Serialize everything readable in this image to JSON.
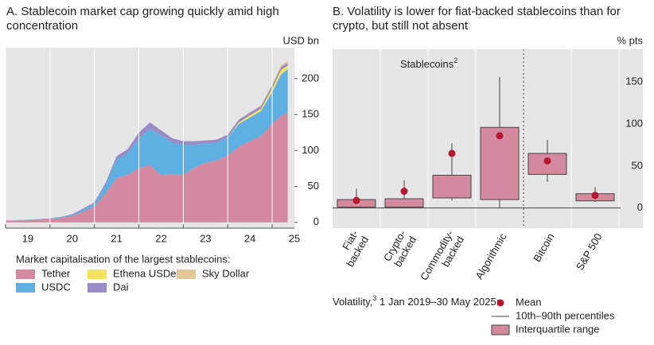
{
  "chart_data": [
    {
      "type": "area",
      "title": "A. Stablecoin market cap growing quickly amid high concentration",
      "y_unit": "USD bn",
      "x": [
        2019,
        2019.5,
        2020,
        2020.25,
        2020.5,
        2020.75,
        2021,
        2021.25,
        2021.5,
        2021.75,
        2022,
        2022.25,
        2022.5,
        2022.75,
        2023,
        2023.25,
        2023.5,
        2023.75,
        2024,
        2024.25,
        2024.5,
        2024.75,
        2025,
        2025.2,
        2025.35
      ],
      "series": [
        {
          "name": "Tether",
          "color": "#d4899e",
          "values": [
            2,
            3,
            4.5,
            6,
            9,
            15,
            22,
            40,
            62,
            66,
            75,
            80,
            66,
            67,
            66,
            76,
            83,
            86,
            93,
            105,
            113,
            120,
            137,
            148,
            152
          ]
        },
        {
          "name": "USDC",
          "color": "#5eb0e2",
          "values": [
            0.5,
            0.5,
            0.6,
            1,
            1.5,
            3,
            4,
            12,
            25,
            30,
            42,
            50,
            55,
            44,
            42,
            32,
            27,
            25,
            25,
            32,
            33,
            35,
            44,
            58,
            61
          ]
        },
        {
          "name": "Ethena USDe",
          "color": "#f6e35c",
          "values": [
            0,
            0,
            0,
            0,
            0,
            0,
            0,
            0,
            0,
            0,
            0,
            0,
            0,
            0,
            0,
            0,
            0,
            0,
            0,
            2,
            3,
            3,
            5,
            6,
            5
          ]
        },
        {
          "name": "Dai",
          "color": "#9a8cc6",
          "values": [
            0.2,
            0.3,
            0.5,
            0.7,
            1,
            1.5,
            2,
            3,
            5,
            6,
            8,
            9,
            7,
            6,
            5,
            5,
            4,
            4,
            4,
            4,
            4,
            4,
            4,
            4,
            4
          ]
        },
        {
          "name": "Sky Dollar",
          "color": "#e2c895",
          "values": [
            0,
            0,
            0,
            0,
            0,
            0,
            0,
            0,
            0,
            0,
            0,
            0,
            0,
            0,
            0,
            0,
            0,
            0,
            0,
            0,
            0,
            1,
            2,
            3,
            3
          ]
        }
      ],
      "xlim": [
        2019,
        2025.5
      ],
      "xticks": [
        {
          "value": 2019,
          "label": "19"
        },
        {
          "value": 2020,
          "label": "20"
        },
        {
          "value": 2021,
          "label": "21"
        },
        {
          "value": 2022,
          "label": "22"
        },
        {
          "value": 2023,
          "label": "23"
        },
        {
          "value": 2024,
          "label": "24"
        },
        {
          "value": 2025,
          "label": "25"
        }
      ],
      "ylim": [
        -8,
        243
      ],
      "yticks": [
        0,
        50,
        100,
        150,
        200
      ],
      "legend_title": "Market capitalisation of the largest stablecoins:"
    },
    {
      "type": "box",
      "title": "B. Volatility is lower for fiat-backed stablecoins than for crypto, but still not absent",
      "y_unit": "% pts",
      "annotation": {
        "text": "Stablecoins",
        "sup": "2"
      },
      "categories": [
        "Fiat-backed",
        "Crypto-backed",
        "Commodity-backed",
        "Algorithmic",
        "Bitcoin",
        "S&P 500"
      ],
      "p10": [
        0.5,
        0,
        9,
        0,
        31,
        7
      ],
      "q1": [
        1,
        1,
        12,
        10,
        40,
        8.5
      ],
      "q3": [
        10,
        11,
        39,
        96,
        65,
        17
      ],
      "p90": [
        23,
        33,
        77,
        156,
        81,
        25
      ],
      "mean": [
        9,
        20,
        65,
        86,
        56,
        15
      ],
      "box_color": "#d4899e",
      "mean_color": "#b5172f",
      "ylim": [
        -24,
        189
      ],
      "yticks": [
        0,
        50,
        100,
        150
      ],
      "legend": {
        "title": "Volatility,",
        "title_sup": "3",
        "title_rest": " 1 Jan 2019–30 May 2025:",
        "mean": "Mean",
        "whisker": "10th–90th percentiles",
        "box": "Interquartile range"
      }
    }
  ]
}
